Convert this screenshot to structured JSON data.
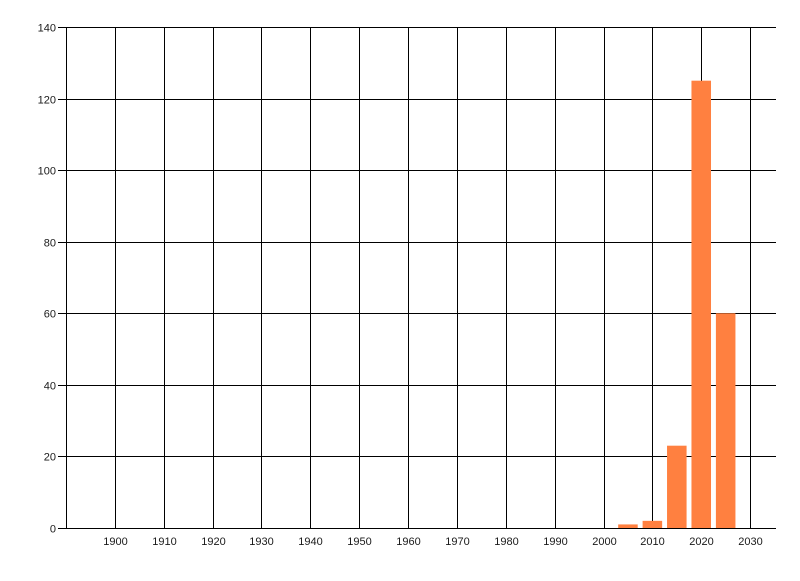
{
  "chart_data": {
    "type": "bar",
    "title": "",
    "xlabel": "",
    "ylabel": "",
    "x": [
      2005,
      2010,
      2015,
      2020,
      2025
    ],
    "values": [
      1,
      2,
      23,
      125,
      60
    ],
    "bar_width_years": 4,
    "xlim": [
      1890,
      2035.3
    ],
    "ylim": [
      0,
      140
    ],
    "xticks": [
      1900,
      1910,
      1920,
      1930,
      1940,
      1950,
      1960,
      1970,
      1980,
      1990,
      2000,
      2010,
      2020,
      2030
    ],
    "yticks": [
      0,
      20,
      40,
      60,
      80,
      100,
      120,
      140
    ],
    "grid": true,
    "bar_color": "#ff8040",
    "grid_color": "#000000"
  }
}
